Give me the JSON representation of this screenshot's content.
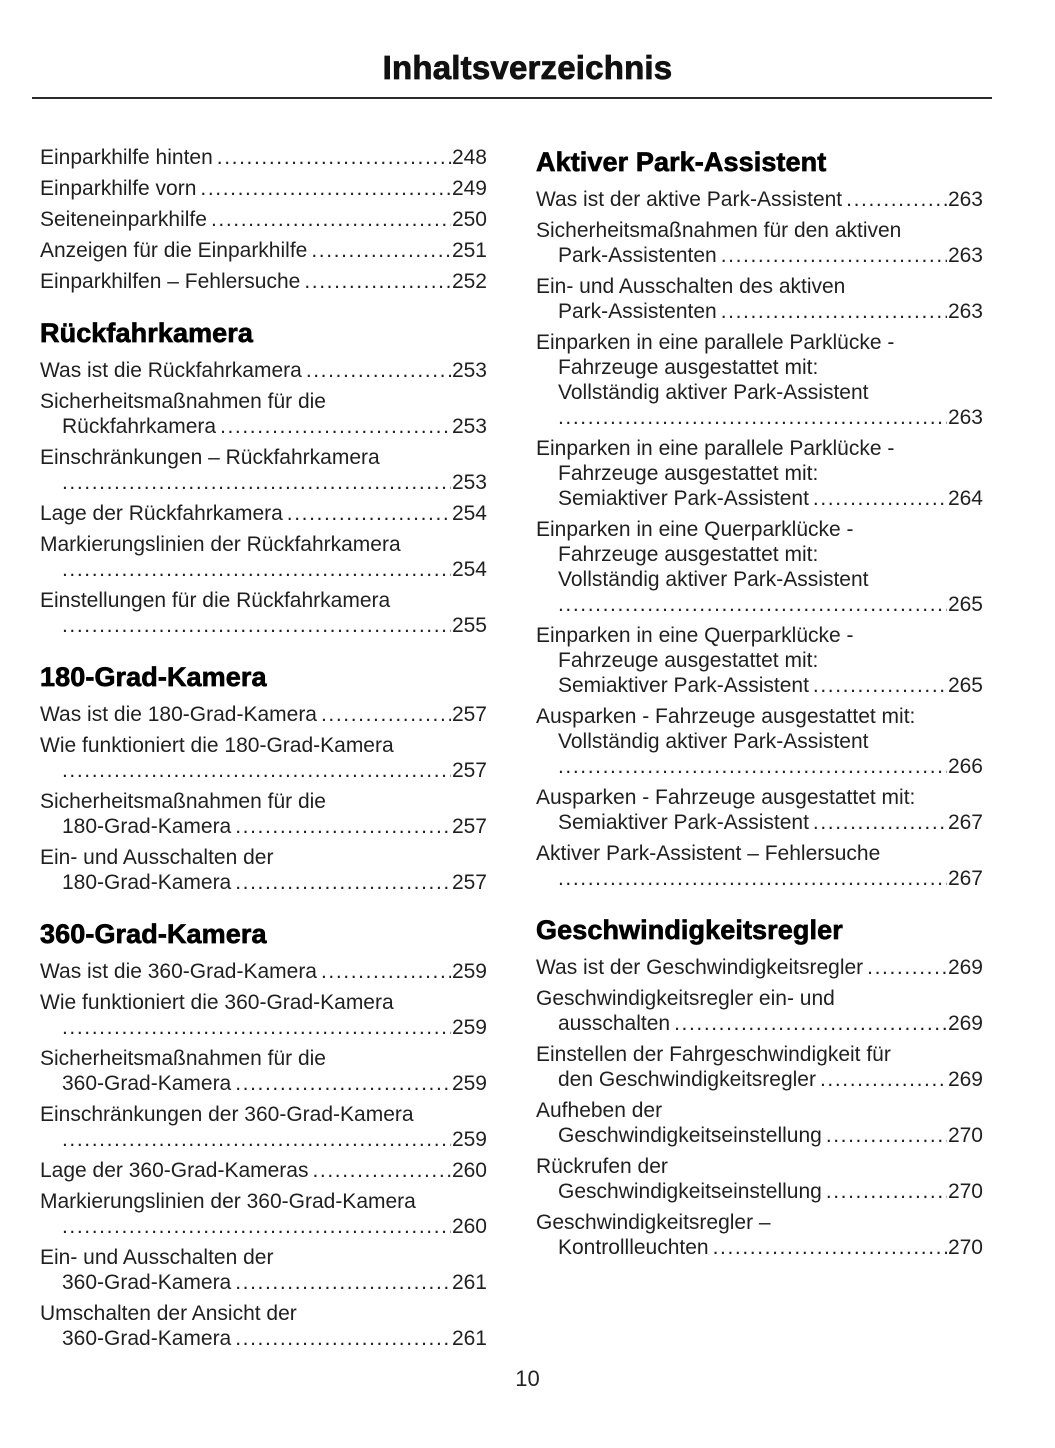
{
  "title": "Inhaltsverzeichnis",
  "footer": {
    "page_number": "10"
  },
  "colors": {
    "text": "#1f1f1f",
    "heading": "#000000",
    "rule": "#2b2b2b"
  },
  "columns": [
    {
      "name": "left",
      "blocks": [
        {
          "heading": "",
          "entries": [
            {
              "lines": [
                "Einparkhilfe hinten"
              ],
              "page": "248"
            },
            {
              "lines": [
                "Einparkhilfe vorn"
              ],
              "page": "249"
            },
            {
              "lines": [
                "Seiteneinparkhilfe"
              ],
              "page": "250"
            },
            {
              "lines": [
                "Anzeigen für die Einparkhilfe"
              ],
              "page": "251"
            },
            {
              "lines": [
                "Einparkhilfen – Fehlersuche"
              ],
              "page": "252"
            }
          ]
        },
        {
          "heading": "Rückfahrkamera",
          "entries": [
            {
              "lines": [
                "Was ist die Rückfahrkamera"
              ],
              "page": "253"
            },
            {
              "lines": [
                "Sicherheitsmaßnahmen für die",
                "Rückfahrkamera"
              ],
              "page": "253"
            },
            {
              "lines": [
                "Einschränkungen – Rückfahrkamera",
                ""
              ],
              "page": "253"
            },
            {
              "lines": [
                "Lage der Rückfahrkamera"
              ],
              "page": "254"
            },
            {
              "lines": [
                "Markierungslinien der Rückfahrkamera",
                ""
              ],
              "page": "254"
            },
            {
              "lines": [
                "Einstellungen für die Rückfahrkamera",
                ""
              ],
              "page": "255"
            }
          ]
        },
        {
          "heading": "180-Grad-Kamera",
          "entries": [
            {
              "lines": [
                "Was ist die 180-Grad-Kamera"
              ],
              "page": "257"
            },
            {
              "lines": [
                "Wie funktioniert die 180-Grad-Kamera",
                ""
              ],
              "page": "257"
            },
            {
              "lines": [
                "Sicherheitsmaßnahmen für die",
                "180-Grad-Kamera"
              ],
              "page": "257"
            },
            {
              "lines": [
                "Ein- und Ausschalten der",
                "180-Grad-Kamera"
              ],
              "page": "257"
            }
          ]
        },
        {
          "heading": "360-Grad-Kamera",
          "entries": [
            {
              "lines": [
                "Was ist die 360-Grad-Kamera"
              ],
              "page": "259"
            },
            {
              "lines": [
                "Wie funktioniert die 360-Grad-Kamera",
                ""
              ],
              "page": "259"
            },
            {
              "lines": [
                "Sicherheitsmaßnahmen für die",
                "360-Grad-Kamera"
              ],
              "page": "259"
            },
            {
              "lines": [
                "Einschränkungen der 360-Grad-Kamera",
                ""
              ],
              "page": "259"
            },
            {
              "lines": [
                "Lage der 360-Grad-Kameras"
              ],
              "page": "260"
            },
            {
              "lines": [
                "Markierungslinien der 360-Grad-Kamera",
                ""
              ],
              "page": "260"
            },
            {
              "lines": [
                "Ein- und Ausschalten der",
                "360-Grad-Kamera"
              ],
              "page": "261"
            },
            {
              "lines": [
                "Umschalten der Ansicht der",
                "360-Grad-Kamera"
              ],
              "page": "261"
            }
          ]
        }
      ]
    },
    {
      "name": "right",
      "blocks": [
        {
          "heading": "Aktiver Park-Assistent",
          "entries": [
            {
              "lines": [
                "Was ist der aktive Park-Assistent"
              ],
              "page": "263"
            },
            {
              "lines": [
                "Sicherheitsmaßnahmen für den aktiven",
                "Park-Assistenten"
              ],
              "page": "263"
            },
            {
              "lines": [
                "Ein- und Ausschalten des aktiven",
                "Park-Assistenten"
              ],
              "page": "263"
            },
            {
              "lines": [
                "Einparken in eine parallele Parklücke -",
                "Fahrzeuge ausgestattet mit:",
                "Vollständig aktiver Park-Assistent",
                ""
              ],
              "page": "263"
            },
            {
              "lines": [
                "Einparken in eine parallele Parklücke -",
                "Fahrzeuge ausgestattet mit:",
                "Semiaktiver Park-Assistent"
              ],
              "page": "264"
            },
            {
              "lines": [
                "Einparken in eine Querparklücke -",
                "Fahrzeuge ausgestattet mit:",
                "Vollständig aktiver Park-Assistent",
                ""
              ],
              "page": "265"
            },
            {
              "lines": [
                "Einparken in eine Querparklücke -",
                "Fahrzeuge ausgestattet mit:",
                "Semiaktiver Park-Assistent"
              ],
              "page": "265"
            },
            {
              "lines": [
                "Ausparken - Fahrzeuge ausgestattet mit:",
                "Vollständig aktiver Park-Assistent",
                ""
              ],
              "page": "266"
            },
            {
              "lines": [
                "Ausparken - Fahrzeuge ausgestattet mit:",
                "Semiaktiver Park-Assistent"
              ],
              "page": "267"
            },
            {
              "lines": [
                "Aktiver Park-Assistent – Fehlersuche",
                ""
              ],
              "page": "267"
            }
          ]
        },
        {
          "heading": "Geschwindigkeitsregler",
          "entries": [
            {
              "lines": [
                "Was ist der Geschwindigkeitsregler"
              ],
              "page": "269"
            },
            {
              "lines": [
                "Geschwindigkeitsregler ein- und",
                "ausschalten"
              ],
              "page": "269"
            },
            {
              "lines": [
                "Einstellen der Fahrgeschwindigkeit für",
                "den Geschwindigkeitsregler"
              ],
              "page": "269"
            },
            {
              "lines": [
                "Aufheben der",
                "Geschwindigkeitseinstellung"
              ],
              "page": "270"
            },
            {
              "lines": [
                "Rückrufen der",
                "Geschwindigkeitseinstellung"
              ],
              "page": "270"
            },
            {
              "lines": [
                "Geschwindigkeitsregler –",
                "Kontrollleuchten"
              ],
              "page": "270"
            }
          ]
        }
      ]
    }
  ]
}
